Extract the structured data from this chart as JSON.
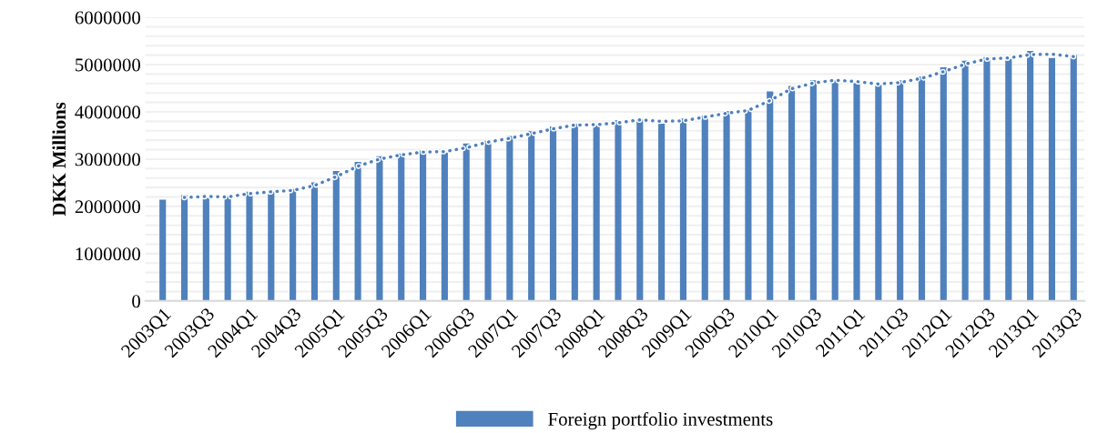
{
  "chart_data": {
    "type": "bar",
    "ylabel": "DKK Millions",
    "categories": [
      "2003Q1",
      null,
      "2003Q3",
      null,
      "2004Q1",
      null,
      "2004Q3",
      null,
      "2005Q1",
      null,
      "2005Q3",
      null,
      "2006Q1",
      null,
      "2006Q3",
      null,
      "2007Q1",
      null,
      "2007Q3",
      null,
      "2008Q1",
      null,
      "2008Q3",
      null,
      "2009Q1",
      null,
      "2009Q3",
      null,
      "2010Q1",
      null,
      "2010Q3",
      null,
      "2011Q1",
      null,
      "2011Q3",
      null,
      "2012Q1",
      null,
      "2012Q3",
      null,
      "2013Q1",
      null,
      "2013Q3"
    ],
    "series": [
      {
        "name": "Foreign portfolio investments",
        "color": "#4f81bd",
        "values": [
          2140000,
          2240000,
          2180000,
          2220000,
          2310000,
          2310000,
          2370000,
          2510000,
          2750000,
          2940000,
          3060000,
          3120000,
          3180000,
          3140000,
          3330000,
          3390000,
          3490000,
          3590000,
          3690000,
          3750000,
          3710000,
          3820000,
          3840000,
          3750000,
          3860000,
          3920000,
          4020000,
          4040000,
          4430000,
          4550000,
          4670000,
          4670000,
          4610000,
          4570000,
          4670000,
          4750000,
          4940000,
          5080000,
          5160000,
          5120000,
          5290000,
          5140000,
          5200000
        ]
      },
      {
        "type": "line",
        "color": "#4f81bd",
        "line_style": "dotted",
        "marker": "none",
        "values": [
          null,
          2190000,
          2210000,
          2200000,
          2270000,
          2310000,
          2340000,
          2440000,
          2630000,
          2850000,
          3000000,
          3090000,
          3150000,
          3160000,
          3240000,
          3360000,
          3440000,
          3540000,
          3640000,
          3720000,
          3730000,
          3770000,
          3830000,
          3800000,
          3810000,
          3890000,
          3970000,
          4030000,
          4240000,
          4490000,
          4610000,
          4670000,
          4640000,
          4590000,
          4620000,
          4710000,
          4850000,
          5010000,
          5120000,
          5140000,
          5210000,
          5220000,
          5170000
        ]
      }
    ],
    "ylim": [
      0,
      6000000
    ],
    "yticks": [
      0,
      {
        "value": 200000,
        "label": null
      },
      {
        "value": 400000,
        "label": null
      },
      {
        "value": 600000,
        "label": null
      },
      {
        "value": 800000,
        "label": null
      },
      1000000,
      {
        "value": 1200000,
        "label": null
      },
      {
        "value": 1400000,
        "label": null
      },
      {
        "value": 1600000,
        "label": null
      },
      {
        "value": 1800000,
        "label": null
      },
      2000000,
      {
        "value": 2200000,
        "label": null
      },
      {
        "value": 2400000,
        "label": null
      },
      {
        "value": 2600000,
        "label": null
      },
      {
        "value": 2800000,
        "label": null
      },
      3000000,
      {
        "value": 3200000,
        "label": null
      },
      {
        "value": 3400000,
        "label": null
      },
      {
        "value": 3600000,
        "label": null
      },
      {
        "value": 3800000,
        "label": null
      },
      4000000,
      {
        "value": 4200000,
        "label": null
      },
      {
        "value": 4400000,
        "label": null
      },
      {
        "value": 4600000,
        "label": null
      },
      {
        "value": 4800000,
        "label": null
      },
      5000000,
      {
        "value": 5200000,
        "label": null
      },
      {
        "value": 5400000,
        "label": null
      },
      {
        "value": 5600000,
        "label": null
      },
      {
        "value": 5800000,
        "label": null
      },
      6000000
    ],
    "grid": "y",
    "legend": "bottom"
  }
}
